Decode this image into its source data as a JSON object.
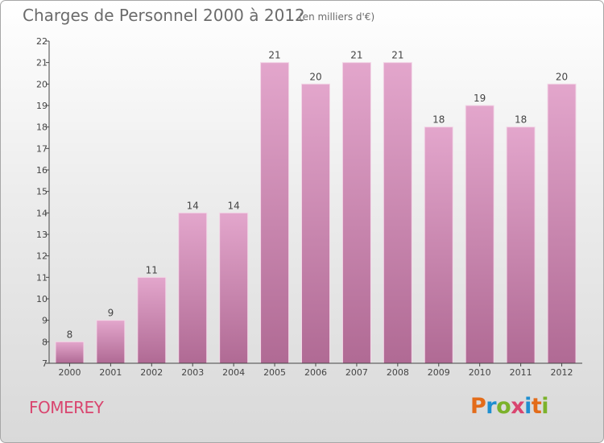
{
  "header": {
    "title": "Charges de Personnel 2000 à 2012",
    "subtitle": "(en milliers d'€)"
  },
  "footer": {
    "commune": "FOMEREY",
    "brand": "Proxiti",
    "brand_colors": [
      "#e36c1a",
      "#1f8fd0",
      "#7cb22b",
      "#d9456f",
      "#1f8fd0",
      "#e36c1a",
      "#7cb22b"
    ]
  },
  "colors": {
    "bar_top": "#e3a6cc",
    "bar_bottom": "#b06a94",
    "bar_edge": "#f3d7e7",
    "axis": "#444444",
    "text": "#444444",
    "commune": "#d9456f"
  },
  "chart_data": {
    "type": "bar",
    "categories": [
      "2000",
      "2001",
      "2002",
      "2003",
      "2004",
      "2005",
      "2006",
      "2007",
      "2008",
      "2009",
      "2010",
      "2011",
      "2012"
    ],
    "values": [
      8,
      9,
      11,
      14,
      14,
      21,
      20,
      21,
      21,
      18,
      19,
      18,
      20
    ],
    "title": "Charges de Personnel 2000 à 2012",
    "xlabel": "",
    "ylabel": "",
    "ylim": [
      7,
      22
    ],
    "yticks": [
      7,
      8,
      9,
      10,
      11,
      12,
      13,
      14,
      15,
      16,
      17,
      18,
      19,
      20,
      21,
      22
    ],
    "grid": false,
    "data_labels": true
  }
}
